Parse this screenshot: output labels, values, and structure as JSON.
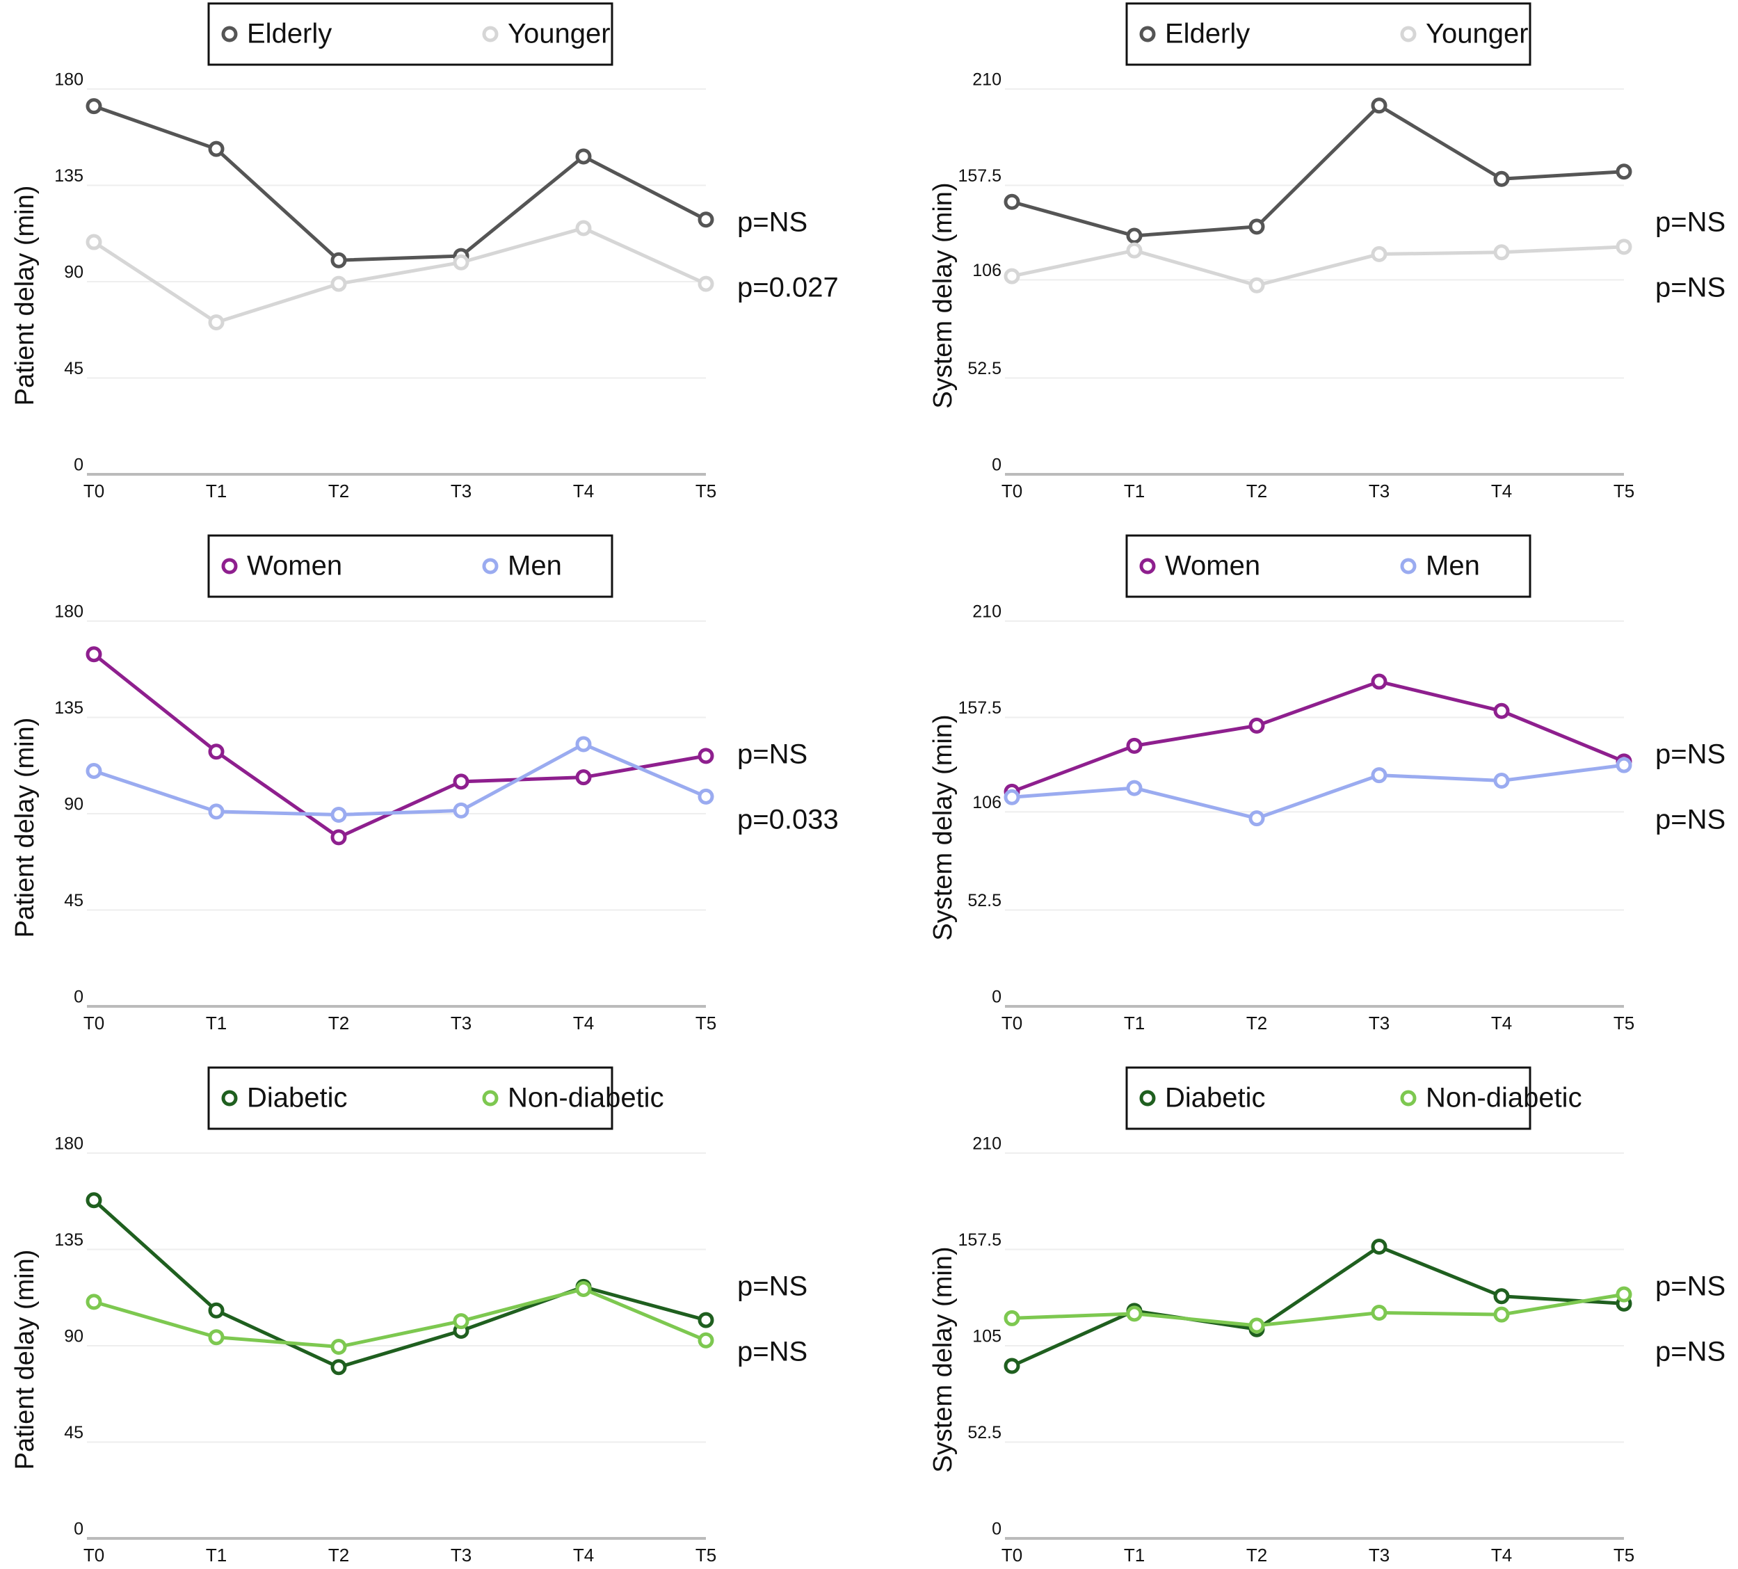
{
  "chart_data": [
    {
      "type": "line",
      "ylabel": "Patient delay (min)",
      "categories": [
        "T0",
        "T1",
        "T2",
        "T3",
        "T4",
        "T5"
      ],
      "series": [
        {
          "name": "Elderly",
          "color": "#555555",
          "values": [
            172,
            152,
            100,
            102,
            148.5,
            119
          ]
        },
        {
          "name": "Younger",
          "color": "#d6d6d6",
          "values": [
            108.5,
            71,
            89,
            99,
            115,
            89
          ]
        }
      ],
      "ylim": [
        0,
        180
      ],
      "yticks": [
        0,
        45,
        90,
        135,
        180
      ],
      "grid": true,
      "annotations": [
        "p=NS",
        "p=0.027"
      ]
    },
    {
      "type": "line",
      "ylabel": "System delay (min)",
      "categories": [
        "T0",
        "T1",
        "T2",
        "T3",
        "T4",
        "T5"
      ],
      "series": [
        {
          "name": "Elderly",
          "color": "#555555",
          "values": [
            148.5,
            130,
            135,
            201,
            161,
            165
          ]
        },
        {
          "name": "Younger",
          "color": "#d6d6d6",
          "values": [
            108,
            122,
            103,
            120,
            121,
            124
          ]
        }
      ],
      "ylim": [
        0,
        210
      ],
      "yticks": [
        0,
        52.5,
        106,
        157.5,
        210
      ],
      "grid": true,
      "annotations": [
        "p=NS",
        "p=NS"
      ]
    },
    {
      "type": "line",
      "ylabel": "Patient delay (min)",
      "categories": [
        "T0",
        "T1",
        "T2",
        "T3",
        "T4",
        "T5"
      ],
      "series": [
        {
          "name": "Women",
          "color": "#8e1f8e",
          "values": [
            164.5,
            119,
            79,
            105,
            107,
            117
          ]
        },
        {
          "name": "Men",
          "color": "#9aabf0",
          "values": [
            110,
            91,
            89.5,
            91.5,
            122.5,
            98
          ]
        }
      ],
      "ylim": [
        0,
        180
      ],
      "yticks": [
        0,
        45,
        90,
        135,
        180
      ],
      "grid": true,
      "annotations": [
        "p=NS",
        "p=0.033"
      ]
    },
    {
      "type": "line",
      "ylabel": "System delay (min)",
      "categories": [
        "T0",
        "T1",
        "T2",
        "T3",
        "T4",
        "T5"
      ],
      "series": [
        {
          "name": "Women",
          "color": "#8e1f8e",
          "values": [
            117,
            142,
            153,
            177,
            161,
            133.5
          ]
        },
        {
          "name": "Men",
          "color": "#9aabf0",
          "values": [
            114,
            119,
            102.5,
            126,
            123,
            131.5
          ]
        }
      ],
      "ylim": [
        0,
        210
      ],
      "yticks": [
        0,
        52.5,
        106,
        157.5,
        210
      ],
      "grid": true,
      "annotations": [
        "p=NS",
        "p=NS"
      ]
    },
    {
      "type": "line",
      "ylabel": "Patient delay (min)",
      "categories": [
        "T0",
        "T1",
        "T2",
        "T3",
        "T4",
        "T5"
      ],
      "series": [
        {
          "name": "Diabetic",
          "color": "#1f5f1f",
          "values": [
            158,
            106.5,
            80,
            97,
            117.5,
            102
          ]
        },
        {
          "name": "Non-diabetic",
          "color": "#7dc850",
          "values": [
            110.5,
            94,
            89.5,
            101.5,
            116.5,
            92.5
          ]
        }
      ],
      "ylim": [
        0,
        180
      ],
      "yticks": [
        0,
        45,
        90,
        135,
        180
      ],
      "grid": true,
      "annotations": [
        "p=NS",
        "p=NS"
      ]
    },
    {
      "type": "line",
      "ylabel": "System delay (min)",
      "categories": [
        "T0",
        "T1",
        "T2",
        "T3",
        "T4",
        "T5"
      ],
      "series": [
        {
          "name": "Diabetic",
          "color": "#1f5f1f",
          "values": [
            94,
            124,
            114,
            159,
            132,
            128
          ]
        },
        {
          "name": "Non-diabetic",
          "color": "#7dc850",
          "values": [
            120,
            122.5,
            116,
            123,
            122,
            133
          ]
        }
      ],
      "ylim": [
        0,
        210
      ],
      "yticks": [
        0,
        52.5,
        105,
        157.5,
        210
      ],
      "grid": true,
      "annotations": [
        "p=NS",
        "p=NS"
      ]
    }
  ]
}
